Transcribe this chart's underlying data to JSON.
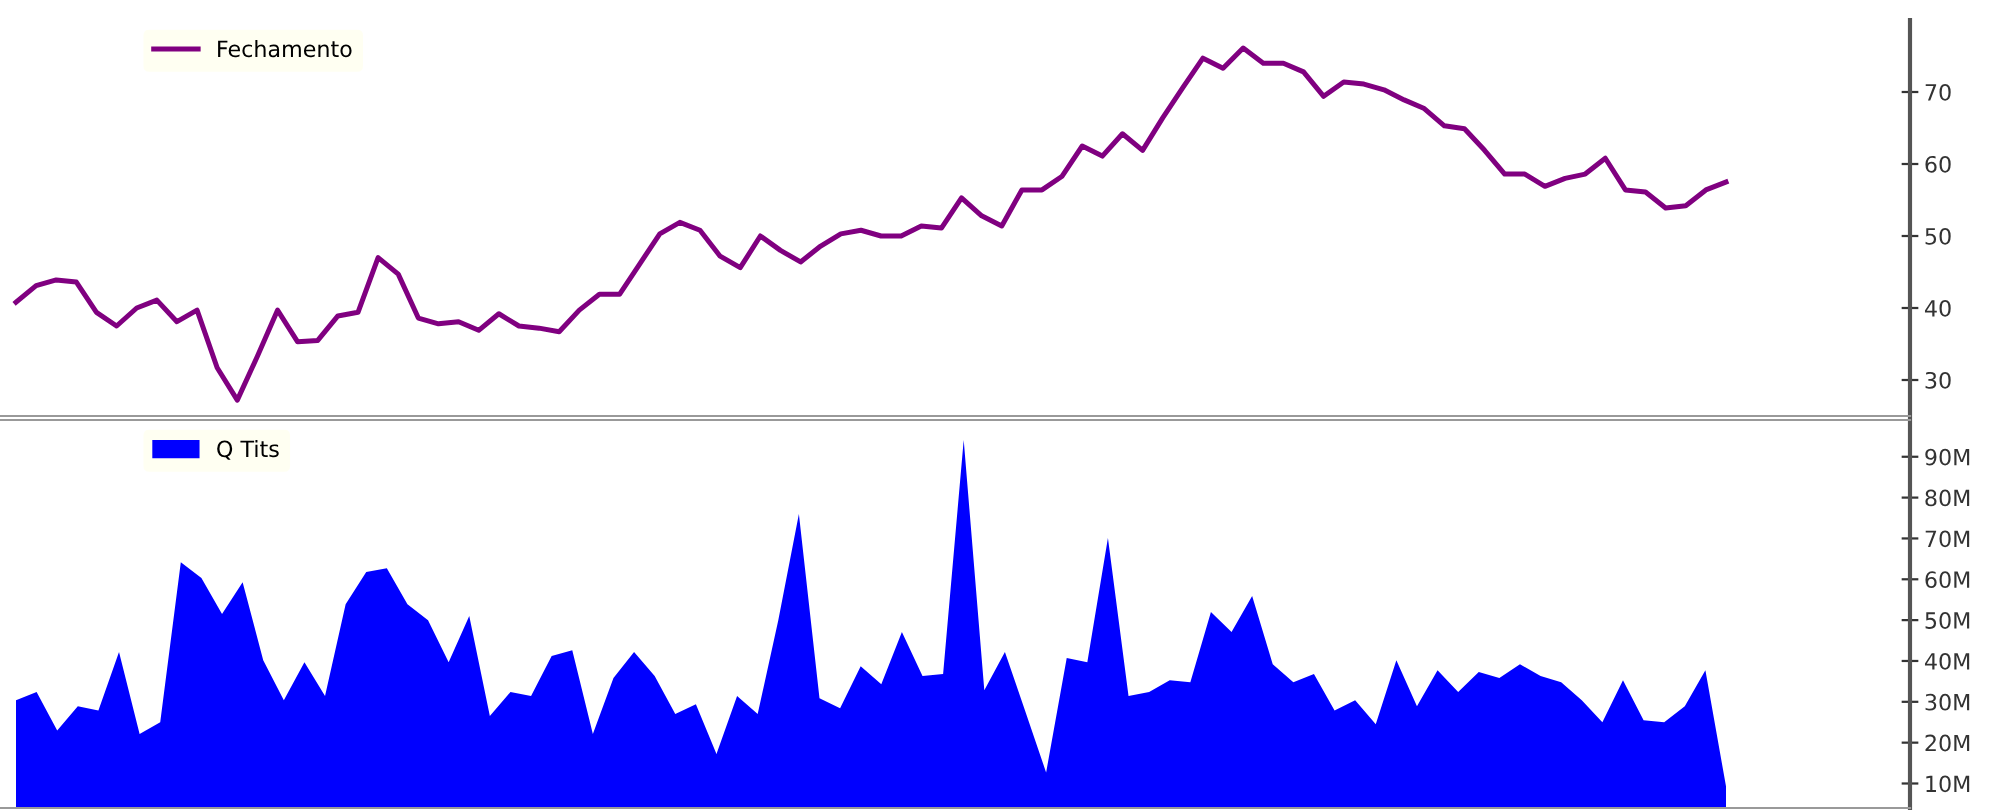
{
  "chart_data": [
    {
      "type": "line",
      "categories": [
        null,
        null,
        null,
        null,
        null,
        null,
        null,
        null,
        null,
        null,
        null,
        null,
        null,
        null,
        null,
        null,
        null,
        null,
        null,
        null,
        null,
        null,
        null,
        null,
        null,
        null,
        null,
        null,
        null,
        null,
        null,
        null,
        null,
        null,
        null,
        null,
        null,
        null,
        null,
        null,
        null,
        null,
        null,
        null,
        null,
        null,
        null,
        null,
        null,
        null,
        null,
        null,
        null,
        null,
        null,
        null,
        null,
        null,
        null,
        null,
        null,
        null,
        null,
        null,
        null,
        null,
        null,
        null,
        null,
        null,
        null,
        null,
        null,
        null,
        null,
        null,
        null,
        null,
        null,
        null,
        null,
        null,
        null,
        null,
        null,
        null
      ],
      "series": [
        {
          "name": "Fechamento",
          "color": "#800080",
          "values": [
            40.8,
            43.1,
            43.9,
            43.6,
            39.4,
            37.5,
            40,
            41.1,
            38.1,
            39.7,
            31.7,
            27.2,
            33.3,
            39.7,
            35.3,
            35.5,
            38.9,
            39.4,
            47,
            44.7,
            38.6,
            37.8,
            38.1,
            36.9,
            39.2,
            37.5,
            37.2,
            36.7,
            39.7,
            41.9,
            41.9,
            46.1,
            50.3,
            51.9,
            50.8,
            47.2,
            45.6,
            50,
            48,
            46.4,
            48.6,
            50.3,
            50.8,
            50,
            50,
            51.4,
            51.1,
            55.3,
            52.8,
            51.4,
            56.4,
            56.4,
            58.3,
            62.5,
            61.1,
            64.2,
            61.9,
            66.4,
            70.6,
            74.7,
            73.3,
            76.1,
            74,
            74,
            72.8,
            69.4,
            71.4,
            71.1,
            70.3,
            68.9,
            67.7,
            65.3,
            64.9,
            61.9,
            58.6,
            58.6,
            56.9,
            58,
            58.6,
            60.8,
            56.4,
            56.1,
            53.9,
            54.2,
            56.4,
            57.5
          ]
        }
      ],
      "ylim": [
        25,
        80
      ],
      "yticks": [
        30,
        40,
        50,
        60,
        70
      ],
      "tick_labels": "y",
      "legend": "top left",
      "marker": "none",
      "line_style": "solid",
      "grid": false
    },
    {
      "type": "area",
      "categories": [
        null,
        null,
        null,
        null,
        null,
        null,
        null,
        null,
        null,
        null,
        null,
        null,
        null,
        null,
        null,
        null,
        null,
        null,
        null,
        null,
        null,
        null,
        null,
        null,
        null,
        null,
        null,
        null,
        null,
        null,
        null,
        null,
        null,
        null,
        null,
        null,
        null,
        null,
        null,
        null,
        null,
        null,
        null,
        null,
        null,
        null,
        null,
        null,
        null,
        null,
        null,
        null,
        null,
        null,
        null,
        null,
        null,
        null,
        null,
        null,
        null,
        null,
        null,
        null,
        null,
        null,
        null,
        null,
        null,
        null,
        null,
        null,
        null,
        null,
        null,
        null,
        null,
        null,
        null,
        null,
        null,
        null,
        null,
        null
      ],
      "series": [
        {
          "name": "Q Tits",
          "color": "#0000ff",
          "values": [
            30.4,
            32.4,
            23,
            28.9,
            27.9,
            42.2,
            22.1,
            25,
            64.2,
            60.3,
            51.5,
            59.3,
            40.2,
            30.4,
            39.7,
            31.4,
            53.9,
            61.8,
            62.7,
            53.9,
            50,
            39.7,
            51,
            26.5,
            32.4,
            31.4,
            41.2,
            42.6,
            22.1,
            35.8,
            42.2,
            36.3,
            27,
            29.4,
            17.2,
            31.4,
            27,
            50,
            76,
            30.9,
            28.4,
            38.7,
            34.3,
            47.1,
            36.3,
            36.8,
            94.1,
            32.8,
            42.2,
            27.5,
            12.7,
            40.7,
            39.7,
            70.1,
            31.4,
            32.4,
            35.3,
            34.8,
            52,
            47.1,
            55.9,
            39.2,
            34.8,
            36.8,
            27.9,
            30.4,
            24.5,
            40.2,
            28.9,
            37.7,
            32.4,
            37.3,
            35.8,
            39.2,
            36.3,
            34.8,
            30.4,
            25,
            35.3,
            25.5,
            25,
            28.9,
            37.7,
            9.3
          ]
        }
      ],
      "ylim": [
        4,
        99
      ],
      "yticks": [
        {
          "value": 10,
          "label": "10M"
        },
        {
          "value": 20,
          "label": "20M"
        },
        {
          "value": 30,
          "label": "30M"
        },
        {
          "value": 40,
          "label": "40M"
        },
        {
          "value": 50,
          "label": "50M"
        },
        {
          "value": 60,
          "label": "60M"
        },
        {
          "value": 70,
          "label": "70M"
        },
        {
          "value": 80,
          "label": "80M"
        },
        {
          "value": 90,
          "label": "90M"
        }
      ],
      "tick_labels": "y",
      "legend": "top left",
      "grid": false
    }
  ]
}
